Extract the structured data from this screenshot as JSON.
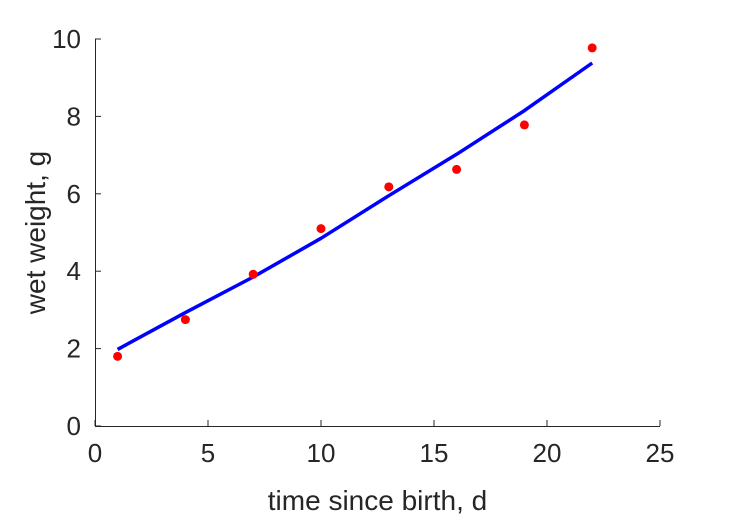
{
  "chart_data": {
    "type": "scatter",
    "title": "",
    "xlabel": "time since birth, d",
    "ylabel": "wet weight, g",
    "xlim": [
      0,
      25
    ],
    "ylim": [
      0,
      10
    ],
    "xticks": [
      0,
      5,
      10,
      15,
      20,
      25
    ],
    "yticks": [
      0,
      2,
      4,
      6,
      8,
      10
    ],
    "grid": false,
    "legend": "none",
    "series": [
      {
        "kind": "points",
        "color": "#ff0000",
        "x": [
          1,
          4,
          7,
          10,
          13,
          16,
          19,
          22
        ],
        "y": [
          1.8,
          2.75,
          3.92,
          5.1,
          6.18,
          6.63,
          7.78,
          9.77
        ]
      },
      {
        "kind": "line",
        "color": "#0000ff",
        "x": [
          1,
          4,
          7,
          10,
          13,
          16,
          19,
          22
        ],
        "y": [
          1.98,
          2.93,
          3.85,
          4.85,
          5.95,
          7.02,
          8.15,
          9.38
        ]
      }
    ]
  }
}
